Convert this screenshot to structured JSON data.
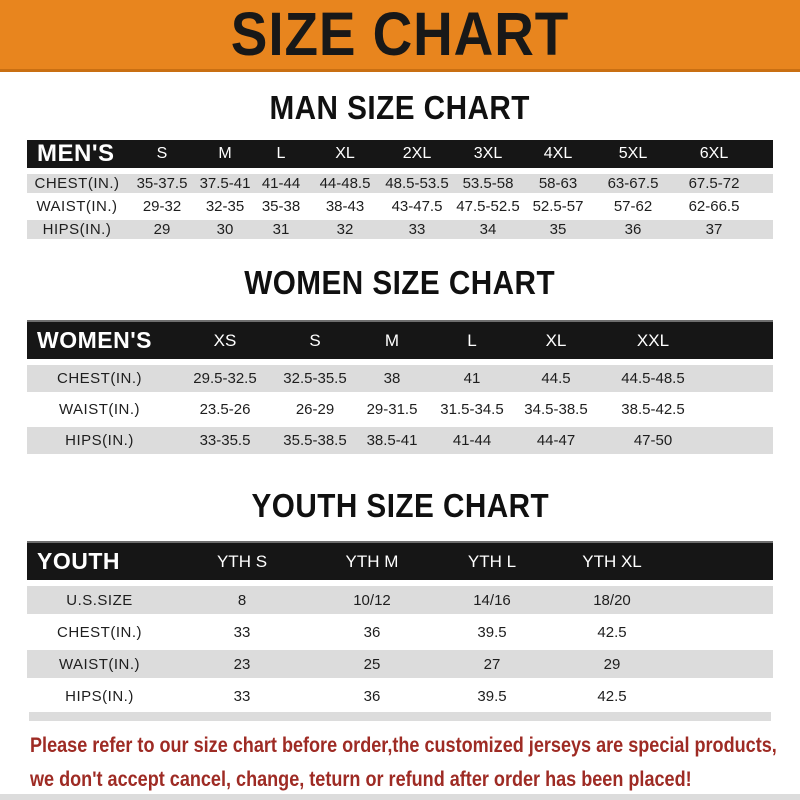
{
  "banner": {
    "title": "SIZE CHART"
  },
  "sections": {
    "men": {
      "heading": "MAN SIZE CHART"
    },
    "women": {
      "heading": "WOMEN SIZE CHART"
    },
    "youth": {
      "heading": "YOUTH SIZE CHART"
    }
  },
  "tables": {
    "men": {
      "label": "MEN'S",
      "sizes": [
        "S",
        "M",
        "L",
        "XL",
        "2XL",
        "3XL",
        "4XL",
        "5XL",
        "6XL"
      ],
      "rows": [
        {
          "label": "CHEST(IN.)",
          "values": [
            "35-37.5",
            "37.5-41",
            "41-44",
            "44-48.5",
            "48.5-53.5",
            "53.5-58",
            "58-63",
            "63-67.5",
            "67.5-72"
          ]
        },
        {
          "label": "WAIST(IN.)",
          "values": [
            "29-32",
            "32-35",
            "35-38",
            "38-43",
            "43-47.5",
            "47.5-52.5",
            "52.5-57",
            "57-62",
            "62-66.5"
          ]
        },
        {
          "label": "HIPS(IN.)",
          "values": [
            "29",
            "30",
            "31",
            "32",
            "33",
            "34",
            "35",
            "36",
            "37"
          ]
        }
      ]
    },
    "women": {
      "label": "WOMEN'S",
      "sizes": [
        "XS",
        "S",
        "M",
        "L",
        "XL",
        "XXL"
      ],
      "rows": [
        {
          "label": "CHEST(IN.)",
          "values": [
            "29.5-32.5",
            "32.5-35.5",
            "38",
            "41",
            "44.5",
            "44.5-48.5"
          ]
        },
        {
          "label": "WAIST(IN.)",
          "values": [
            "23.5-26",
            "26-29",
            "29-31.5",
            "31.5-34.5",
            "34.5-38.5",
            "38.5-42.5"
          ]
        },
        {
          "label": "HIPS(IN.)",
          "values": [
            "33-35.5",
            "35.5-38.5",
            "38.5-41",
            "41-44",
            "44-47",
            "47-50"
          ]
        }
      ]
    },
    "youth": {
      "label": "YOUTH",
      "sizes": [
        "YTH S",
        "YTH M",
        "YTH L",
        "YTH XL"
      ],
      "rows": [
        {
          "label": "U.S.SIZE",
          "values": [
            "8",
            "10/12",
            "14/16",
            "18/20"
          ]
        },
        {
          "label": "CHEST(IN.)",
          "values": [
            "33",
            "36",
            "39.5",
            "42.5"
          ]
        },
        {
          "label": "WAIST(IN.)",
          "values": [
            "23",
            "25",
            "27",
            "29"
          ]
        },
        {
          "label": "HIPS(IN.)",
          "values": [
            "33",
            "36",
            "39.5",
            "42.5"
          ]
        }
      ]
    }
  },
  "footer": {
    "line1": "Please refer to our size chart before order,the customized jerseys are special products,",
    "line2": "we don't accept cancel, change, teturn or refund after order has been placed!"
  },
  "colors": {
    "banner_orange": "#E8851E",
    "banner_border": "#C96F12",
    "bar_black": "#161616",
    "row_gray": "#DCDCDC",
    "note_red": "#9E2B24",
    "text_dark": "#1E1E1E"
  }
}
